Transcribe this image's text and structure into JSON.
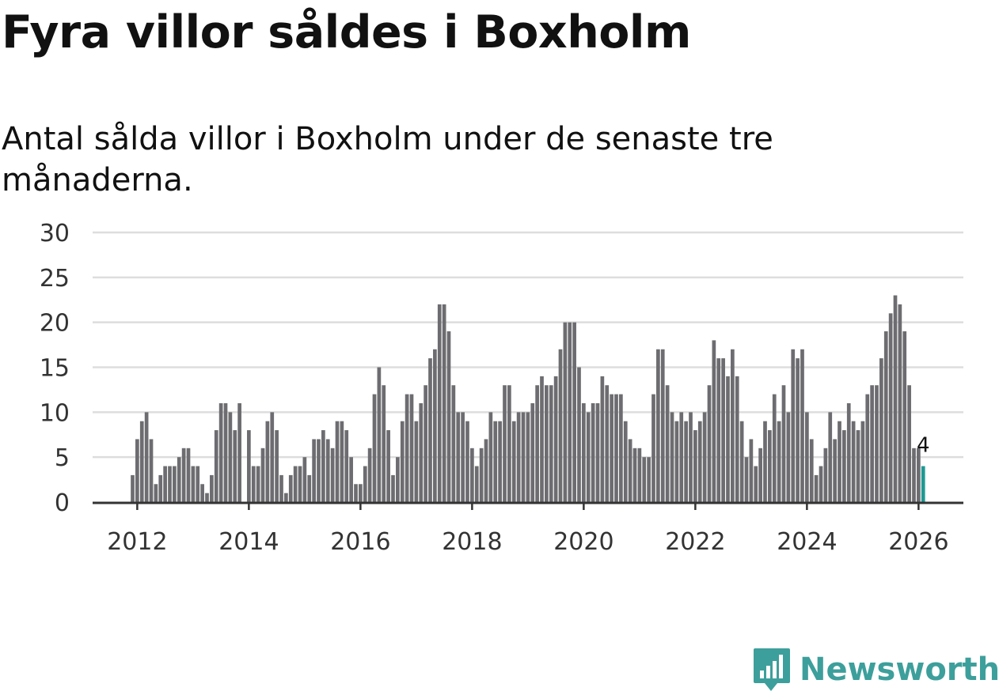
{
  "title": "Fyra villor såldes i Boxholm",
  "subtitle": "Antal sålda villor i Boxholm under de senaste tre månaderna.",
  "brand": {
    "name": "Newsworthy",
    "color": "#3d9f9b",
    "icon": "newsworthy-logo-icon"
  },
  "colors": {
    "bar": "#6d6c70",
    "highlight": "#1e9a93",
    "grid": "#dddddd",
    "axis": "#333333"
  },
  "chart_data": {
    "type": "bar",
    "title": "Fyra villor såldes i Boxholm",
    "subtitle": "Antal sålda villor i Boxholm under de senaste tre månaderna.",
    "xlabel": "",
    "ylabel": "",
    "ylim": [
      0,
      30
    ],
    "yticks": [
      0,
      5,
      10,
      15,
      20,
      25,
      30
    ],
    "xticks": [
      "2012",
      "2014",
      "2016",
      "2018",
      "2020",
      "2022",
      "2024",
      "2026"
    ],
    "start_month": "2011-12",
    "end_month": "2026-01",
    "grid": true,
    "values": [
      3,
      7,
      9,
      10,
      7,
      2,
      3,
      4,
      4,
      4,
      5,
      6,
      6,
      4,
      4,
      2,
      1,
      3,
      8,
      11,
      11,
      10,
      8,
      11,
      0,
      8,
      4,
      4,
      6,
      9,
      10,
      8,
      3,
      1,
      3,
      4,
      4,
      5,
      3,
      7,
      7,
      8,
      7,
      6,
      9,
      9,
      8,
      5,
      2,
      2,
      4,
      6,
      12,
      15,
      13,
      8,
      3,
      5,
      9,
      12,
      12,
      9,
      11,
      13,
      16,
      17,
      22,
      22,
      19,
      13,
      10,
      10,
      9,
      6,
      4,
      6,
      7,
      10,
      9,
      9,
      13,
      13,
      9,
      10,
      10,
      10,
      11,
      13,
      14,
      13,
      13,
      14,
      17,
      20,
      20,
      20,
      15,
      11,
      10,
      11,
      11,
      14,
      13,
      12,
      12,
      12,
      9,
      7,
      6,
      6,
      5,
      5,
      12,
      17,
      17,
      13,
      10,
      9,
      10,
      9,
      10,
      8,
      9,
      10,
      13,
      18,
      16,
      16,
      14,
      17,
      14,
      9,
      5,
      7,
      4,
      6,
      9,
      8,
      12,
      9,
      13,
      10,
      17,
      16,
      17,
      10,
      7,
      3,
      4,
      6,
      10,
      7,
      9,
      8,
      11,
      9,
      8,
      9,
      12,
      13,
      13,
      16,
      19,
      21,
      23,
      22,
      19,
      13,
      6,
      6,
      4
    ],
    "highlight_last": true,
    "annotation": {
      "label": "4",
      "target": "last"
    }
  }
}
